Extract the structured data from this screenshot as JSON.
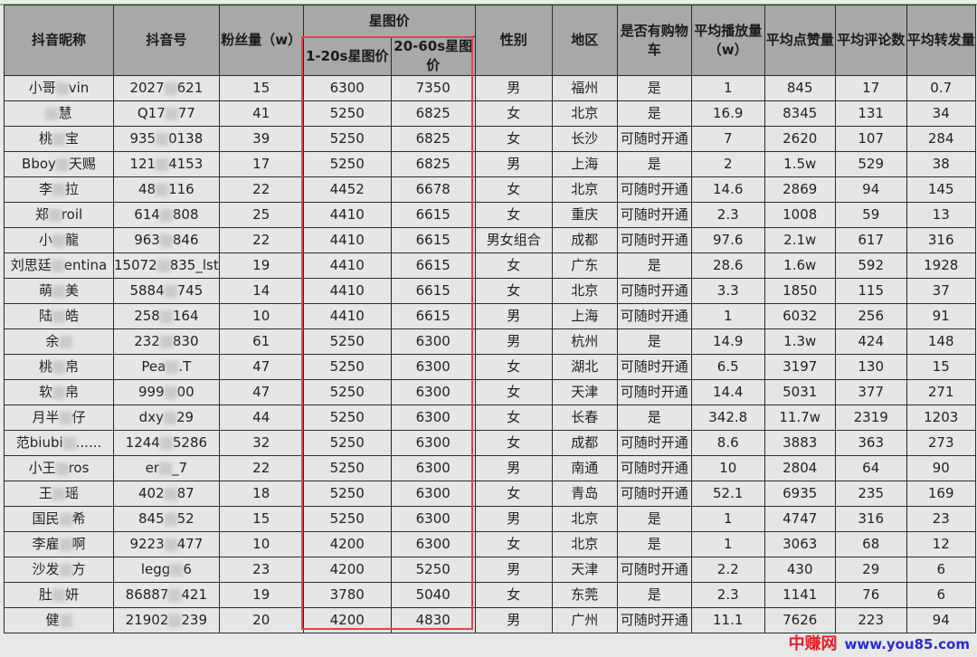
{
  "header": {
    "nickname": "抖音昵称",
    "account": "抖音号",
    "fans": "粉丝量（w）",
    "star_price": "星图价",
    "price_1_20": "1-20s星图价",
    "price_20_60": "20-60s星图价",
    "gender": "性别",
    "region": "地区",
    "cart": "是否有购物车",
    "avg_play": "平均播放量（w）",
    "avg_like": "平均点赞量",
    "avg_comment": "平均评论数",
    "avg_share": "平均转发量"
  },
  "rows": [
    {
      "name": [
        "小哥",
        "vin"
      ],
      "id": [
        "2027",
        "621"
      ],
      "fans": "15",
      "p1": "6300",
      "p2": "7350",
      "gender": "男",
      "region": "福州",
      "cart": "是",
      "play": "1",
      "like": "845",
      "comment": "17",
      "share": "0.7"
    },
    {
      "name": [
        "",
        "慧"
      ],
      "id": [
        "Q17",
        "77"
      ],
      "fans": "41",
      "p1": "5250",
      "p2": "6825",
      "gender": "女",
      "region": "北京",
      "cart": "是",
      "play": "16.9",
      "like": "8345",
      "comment": "131",
      "share": "34"
    },
    {
      "name": [
        "桃",
        "宝"
      ],
      "id": [
        "935",
        "0138"
      ],
      "fans": "39",
      "p1": "5250",
      "p2": "6825",
      "gender": "女",
      "region": "长沙",
      "cart": "可随时开通",
      "play": "7",
      "like": "2620",
      "comment": "107",
      "share": "284"
    },
    {
      "name": [
        "Bboy",
        "天赐"
      ],
      "id": [
        "121",
        "4153"
      ],
      "fans": "17",
      "p1": "5250",
      "p2": "6825",
      "gender": "男",
      "region": "上海",
      "cart": "是",
      "play": "2",
      "like": "1.5w",
      "comment": "529",
      "share": "38"
    },
    {
      "name": [
        "李",
        "拉"
      ],
      "id": [
        "48",
        "116"
      ],
      "fans": "22",
      "p1": "4452",
      "p2": "6678",
      "gender": "女",
      "region": "北京",
      "cart": "可随时开通",
      "play": "14.6",
      "like": "2869",
      "comment": "94",
      "share": "145"
    },
    {
      "name": [
        "郑",
        "roil"
      ],
      "id": [
        "614",
        "808"
      ],
      "fans": "25",
      "p1": "4410",
      "p2": "6615",
      "gender": "女",
      "region": "重庆",
      "cart": "可随时开通",
      "play": "2.3",
      "like": "1008",
      "comment": "59",
      "share": "13"
    },
    {
      "name": [
        "小",
        "龍"
      ],
      "id": [
        "963",
        "846"
      ],
      "fans": "22",
      "p1": "4410",
      "p2": "6615",
      "gender": "男女组合",
      "region": "成都",
      "cart": "可随时开通",
      "play": "97.6",
      "like": "2.1w",
      "comment": "617",
      "share": "316"
    },
    {
      "name": [
        "刘思廷",
        "entina"
      ],
      "id": [
        "15072",
        "835_lst"
      ],
      "fans": "19",
      "p1": "4410",
      "p2": "6615",
      "gender": "女",
      "region": "广东",
      "cart": "是",
      "play": "28.6",
      "like": "1.6w",
      "comment": "592",
      "share": "1928"
    },
    {
      "name": [
        "萌",
        "美"
      ],
      "id": [
        "5884",
        "745"
      ],
      "fans": "14",
      "p1": "4410",
      "p2": "6615",
      "gender": "女",
      "region": "北京",
      "cart": "可随时开通",
      "play": "3.3",
      "like": "1850",
      "comment": "115",
      "share": "37"
    },
    {
      "name": [
        "陆",
        "皓"
      ],
      "id": [
        "258",
        "164"
      ],
      "fans": "10",
      "p1": "4410",
      "p2": "6615",
      "gender": "男",
      "region": "上海",
      "cart": "可随时开通",
      "play": "1",
      "like": "6032",
      "comment": "256",
      "share": "91"
    },
    {
      "name": [
        "余",
        ""
      ],
      "id": [
        "232",
        "830"
      ],
      "fans": "61",
      "p1": "5250",
      "p2": "6300",
      "gender": "男",
      "region": "杭州",
      "cart": "是",
      "play": "14.9",
      "like": "1.3w",
      "comment": "424",
      "share": "148"
    },
    {
      "name": [
        "桃",
        "帛"
      ],
      "id": [
        "Pea",
        ".T"
      ],
      "fans": "47",
      "p1": "5250",
      "p2": "6300",
      "gender": "女",
      "region": "湖北",
      "cart": "可随时开通",
      "play": "6.5",
      "like": "3197",
      "comment": "130",
      "share": "15"
    },
    {
      "name": [
        "软",
        "帛"
      ],
      "id": [
        "999",
        "00"
      ],
      "fans": "47",
      "p1": "5250",
      "p2": "6300",
      "gender": "女",
      "region": "天津",
      "cart": "可随时开通",
      "play": "14.4",
      "like": "5031",
      "comment": "377",
      "share": "271"
    },
    {
      "name": [
        "月半",
        "仔"
      ],
      "id": [
        "dxy",
        "29"
      ],
      "fans": "44",
      "p1": "5250",
      "p2": "6300",
      "gender": "女",
      "region": "长春",
      "cart": "是",
      "play": "342.8",
      "like": "11.7w",
      "comment": "2319",
      "share": "1203"
    },
    {
      "name": [
        "范biubi",
        "......"
      ],
      "id": [
        "1244",
        "5286"
      ],
      "fans": "32",
      "p1": "5250",
      "p2": "6300",
      "gender": "女",
      "region": "成都",
      "cart": "可随时开通",
      "play": "8.6",
      "like": "3883",
      "comment": "363",
      "share": "273"
    },
    {
      "name": [
        "小王",
        "ros"
      ],
      "id": [
        "er",
        "_7"
      ],
      "fans": "22",
      "p1": "5250",
      "p2": "6300",
      "gender": "男",
      "region": "南通",
      "cart": "可随时开通",
      "play": "10",
      "like": "2804",
      "comment": "64",
      "share": "90"
    },
    {
      "name": [
        "王",
        "瑶"
      ],
      "id": [
        "402",
        "87"
      ],
      "fans": "18",
      "p1": "5250",
      "p2": "6300",
      "gender": "女",
      "region": "青岛",
      "cart": "可随时开通",
      "play": "52.1",
      "like": "6935",
      "comment": "235",
      "share": "169"
    },
    {
      "name": [
        "国民",
        "希"
      ],
      "id": [
        "845",
        "52"
      ],
      "fans": "15",
      "p1": "5250",
      "p2": "6300",
      "gender": "男",
      "region": "北京",
      "cart": "是",
      "play": "1",
      "like": "4747",
      "comment": "316",
      "share": "23"
    },
    {
      "name": [
        "李雇",
        "啊"
      ],
      "id": [
        "9223",
        "477"
      ],
      "fans": "10",
      "p1": "4200",
      "p2": "6300",
      "gender": "女",
      "region": "北京",
      "cart": "是",
      "play": "1",
      "like": "3063",
      "comment": "68",
      "share": "12"
    },
    {
      "name": [
        "沙发",
        "方"
      ],
      "id": [
        "legg",
        "6"
      ],
      "fans": "23",
      "p1": "4200",
      "p2": "5250",
      "gender": "男",
      "region": "天津",
      "cart": "可随时开通",
      "play": "2.2",
      "like": "430",
      "comment": "29",
      "share": "6"
    },
    {
      "name": [
        "肚",
        "妍"
      ],
      "id": [
        "86887",
        "421"
      ],
      "fans": "19",
      "p1": "3780",
      "p2": "5040",
      "gender": "女",
      "region": "东莞",
      "cart": "是",
      "play": "2.3",
      "like": "1141",
      "comment": "76",
      "share": "6"
    },
    {
      "name": [
        "健",
        ""
      ],
      "id": [
        "21902",
        "239"
      ],
      "fans": "20",
      "p1": "4200",
      "p2": "4830",
      "gender": "男",
      "region": "广州",
      "cart": "可随时开通",
      "play": "11.1",
      "like": "7626",
      "comment": "223",
      "share": "94"
    }
  ],
  "watermark": {
    "cn": "中赚网",
    "en": "www.you85.com"
  },
  "colors": {
    "header_bg": "#a8a8a8",
    "cell_bg": "#e6e6e6",
    "highlight_box": "#e0454a"
  }
}
